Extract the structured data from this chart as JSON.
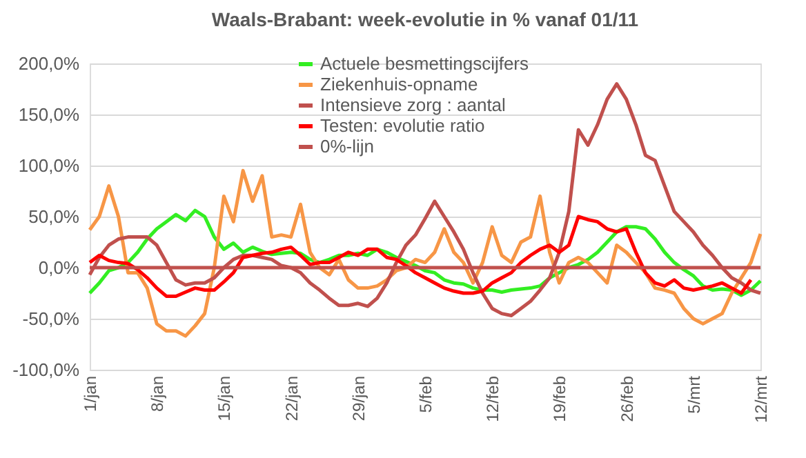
{
  "chart_data": {
    "type": "line",
    "title": "Waals-Brabant: week-evolutie in %  vanaf 01/11",
    "categories": [
      "1/jan",
      null,
      null,
      null,
      null,
      null,
      null,
      "8/jan",
      null,
      null,
      null,
      null,
      null,
      null,
      "15/jan",
      null,
      null,
      null,
      null,
      null,
      null,
      "22/jan",
      null,
      null,
      null,
      null,
      null,
      null,
      "29/jan",
      null,
      null,
      null,
      null,
      null,
      null,
      "5/feb",
      null,
      null,
      null,
      null,
      null,
      null,
      "12/feb",
      null,
      null,
      null,
      null,
      null,
      null,
      "19/feb",
      null,
      null,
      null,
      null,
      null,
      null,
      "26/feb",
      null,
      null,
      null,
      null,
      null,
      null,
      "5/mrt",
      null,
      null,
      null,
      null,
      null,
      null,
      "12/mrt"
    ],
    "series": [
      {
        "name": "Actuele besmettingscijfers",
        "color": "#33ee22",
        "values": [
          -25,
          -15,
          -3,
          0,
          5,
          15,
          28,
          38,
          45,
          52,
          46,
          56,
          50,
          30,
          18,
          24,
          15,
          20,
          16,
          13,
          14,
          15,
          14,
          8,
          5,
          8,
          12,
          12,
          14,
          12,
          18,
          15,
          10,
          6,
          2,
          -3,
          -5,
          -12,
          -15,
          -16,
          -20,
          -22,
          -22,
          -24,
          -22,
          -21,
          -20,
          -18,
          -10,
          -5,
          0,
          3,
          8,
          15,
          25,
          35,
          40,
          40,
          38,
          28,
          15,
          5,
          -2,
          -8,
          -18,
          -22,
          -21,
          -22,
          -27,
          -22,
          -13
        ]
      },
      {
        "name": "Ziekenhuis-opname",
        "color": "#f79646",
        "values": [
          37,
          50,
          80,
          50,
          -5,
          -5,
          -20,
          -55,
          -62,
          -62,
          -67,
          -57,
          -45,
          0,
          70,
          45,
          95,
          65,
          90,
          30,
          32,
          30,
          62,
          15,
          0,
          -7,
          8,
          -12,
          -20,
          -20,
          -18,
          -12,
          -3,
          0,
          8,
          5,
          15,
          38,
          15,
          5,
          -15,
          5,
          40,
          12,
          5,
          25,
          30,
          70,
          15,
          -15,
          5,
          10,
          5,
          -5,
          -15,
          22,
          15,
          5,
          -5,
          -20,
          -22,
          -25,
          -40,
          -50,
          -55,
          -50,
          -45,
          -25,
          -10,
          5,
          33
        ]
      },
      {
        "name": "Intensieve zorg : aantal",
        "color": "#c0504d",
        "values": [
          -7,
          10,
          22,
          28,
          30,
          30,
          30,
          22,
          5,
          -12,
          -17,
          -15,
          -15,
          -10,
          0,
          8,
          12,
          12,
          10,
          8,
          2,
          0,
          -5,
          -15,
          -22,
          -30,
          -37,
          -37,
          -35,
          -38,
          -30,
          -15,
          5,
          22,
          32,
          48,
          65,
          50,
          35,
          18,
          -5,
          -25,
          -40,
          -45,
          -47,
          -40,
          -33,
          -22,
          -10,
          15,
          55,
          135,
          120,
          140,
          165,
          180,
          165,
          140,
          110,
          105,
          80,
          55,
          45,
          35,
          22,
          12,
          0,
          -10,
          -15,
          -22,
          -25
        ]
      },
      {
        "name": "Testen: evolutie ratio",
        "color": "#ff0000",
        "values": [
          5,
          12,
          7,
          5,
          4,
          -2,
          -10,
          -20,
          -28,
          -28,
          -24,
          -20,
          -22,
          -22,
          -14,
          -5,
          10,
          12,
          14,
          15,
          18,
          20,
          12,
          3,
          5,
          5,
          10,
          15,
          12,
          18,
          18,
          10,
          8,
          2,
          -5,
          -10,
          -15,
          -20,
          -23,
          -25,
          -25,
          -23,
          -15,
          -10,
          -5,
          5,
          12,
          18,
          22,
          15,
          22,
          50,
          47,
          45,
          38,
          35,
          38,
          15,
          -5,
          -15,
          -18,
          -12,
          -20,
          -22,
          -20,
          -18,
          -15,
          -20,
          -25,
          -12,
          null
        ]
      },
      {
        "name": "0%-lijn",
        "color": "#c0504d",
        "values": [
          0,
          0,
          0,
          0,
          0,
          0,
          0,
          0,
          0,
          0,
          0,
          0,
          0,
          0,
          0,
          0,
          0,
          0,
          0,
          0,
          0,
          0,
          0,
          0,
          0,
          0,
          0,
          0,
          0,
          0,
          0,
          0,
          0,
          0,
          0,
          0,
          0,
          0,
          0,
          0,
          0,
          0,
          0,
          0,
          0,
          0,
          0,
          0,
          0,
          0,
          0,
          0,
          0,
          0,
          0,
          0,
          0,
          0,
          0,
          0,
          0,
          0,
          0,
          0,
          0,
          0,
          0,
          0,
          0,
          0,
          0
        ]
      }
    ],
    "ylim": [
      -100,
      200
    ],
    "yticks": [
      {
        "value": -100,
        "label": "-100,0%"
      },
      {
        "value": -50,
        "label": "-50,0%"
      },
      {
        "value": 0,
        "label": "0,0%"
      },
      {
        "value": 50,
        "label": "50,0%"
      },
      {
        "value": 100,
        "label": "100,0%"
      },
      {
        "value": 150,
        "label": "150,0%"
      },
      {
        "value": 200,
        "label": "200,0%"
      }
    ],
    "grid": "y",
    "legend": "top",
    "marker": "none",
    "line_style": "solid"
  }
}
